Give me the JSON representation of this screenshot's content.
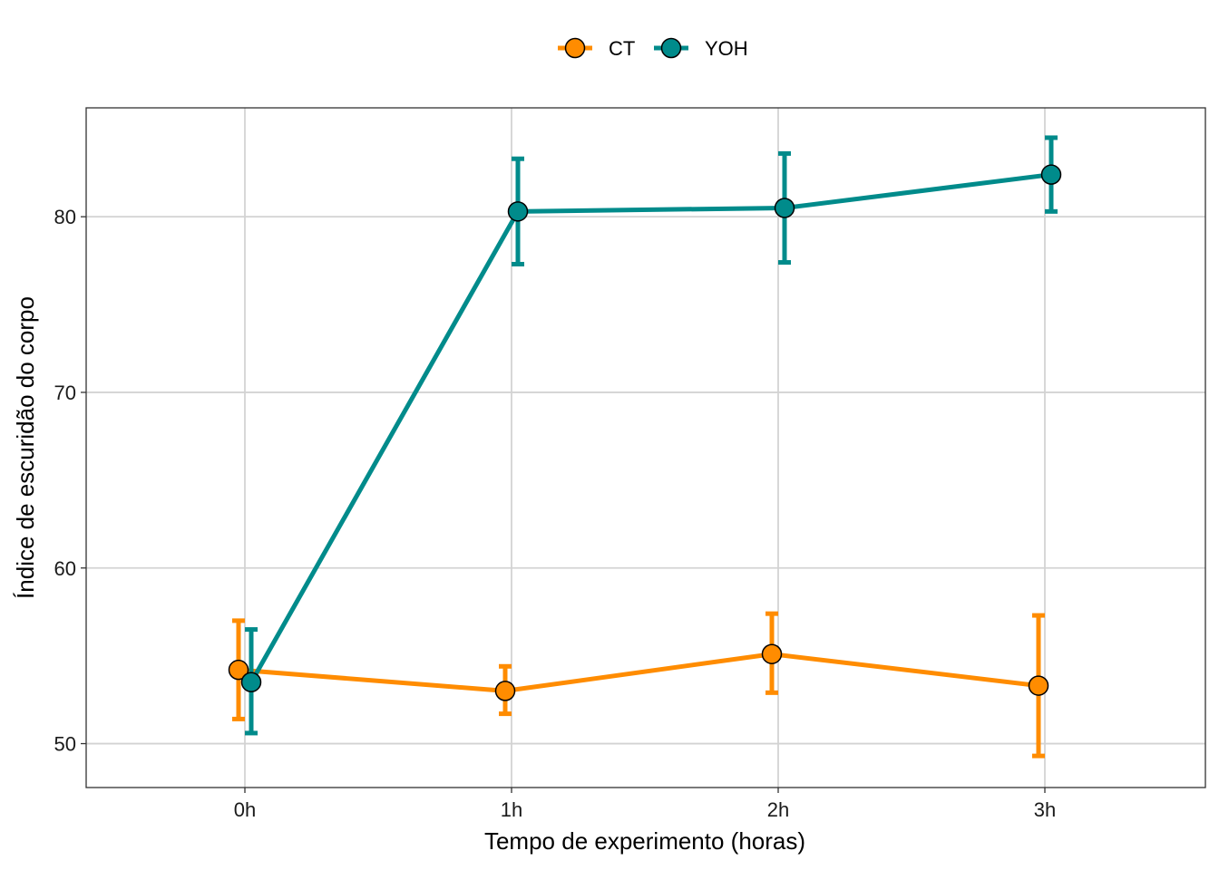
{
  "colors": {
    "CT": "#FF8C00",
    "YOH": "#008B8B",
    "grid": "#d3d3d3",
    "panel_border": "#333333",
    "point_outline": "#000000"
  },
  "chart_data": {
    "type": "line",
    "xlabel": "Tempo de experimento (horas)",
    "ylabel": "Índice de escuridão do corpo",
    "categories": [
      "0h",
      "1h",
      "2h",
      "3h"
    ],
    "y_ticks": [
      "50",
      "60",
      "70",
      "80"
    ],
    "ylim": [
      47.5,
      86.2
    ],
    "grid": true,
    "legend_position": "top",
    "error_bars": true,
    "series": [
      {
        "name": "CT",
        "values": [
          54.2,
          53.0,
          55.1,
          53.3
        ],
        "lower": [
          51.4,
          51.7,
          52.9,
          49.3
        ],
        "upper": [
          57.0,
          54.4,
          57.4,
          57.3
        ]
      },
      {
        "name": "YOH",
        "values": [
          53.5,
          80.3,
          80.5,
          82.4
        ],
        "lower": [
          50.6,
          77.3,
          77.4,
          80.3
        ],
        "upper": [
          56.5,
          83.3,
          83.6,
          84.5
        ]
      }
    ]
  }
}
